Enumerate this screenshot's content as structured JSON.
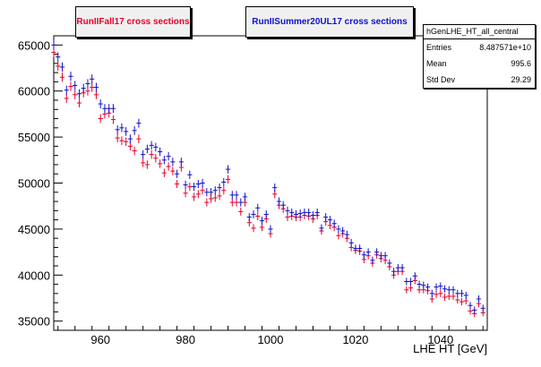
{
  "legend": {
    "fall_label": "RunIIFall17 cross sections",
    "summer_label": "RunIISummer20UL17 cross sections"
  },
  "stats": {
    "name": "hGenLHE_HT_all_central",
    "rows": [
      {
        "label": "Entries",
        "value": "8.487571e+10"
      },
      {
        "label": "Mean",
        "value": "995.6"
      },
      {
        "label": "Std Dev",
        "value": "29.29"
      }
    ]
  },
  "colors": {
    "fall": "#e8002a",
    "summer": "#1010c8"
  },
  "chart_data": {
    "type": "scatter",
    "title": "",
    "xlabel": "LHE HT [GeV]",
    "ylabel": "",
    "xlim": [
      949,
      1051
    ],
    "ylim": [
      34000,
      66000
    ],
    "x_ticks": [
      960,
      980,
      1000,
      1020,
      1040
    ],
    "y_ticks": [
      35000,
      40000,
      45000,
      50000,
      55000,
      60000,
      65000
    ],
    "x": [
      949,
      950,
      951,
      952,
      953,
      954,
      955,
      956,
      957,
      958,
      959,
      960,
      961,
      962,
      963,
      964,
      965,
      966,
      967,
      968,
      969,
      970,
      971,
      972,
      973,
      974,
      975,
      976,
      977,
      978,
      979,
      980,
      981,
      982,
      983,
      984,
      985,
      986,
      987,
      988,
      989,
      990,
      991,
      992,
      993,
      994,
      995,
      996,
      997,
      998,
      999,
      1000,
      1001,
      1002,
      1003,
      1004,
      1005,
      1006,
      1007,
      1008,
      1009,
      1010,
      1011,
      1012,
      1013,
      1014,
      1015,
      1016,
      1017,
      1018,
      1019,
      1020,
      1021,
      1022,
      1023,
      1024,
      1025,
      1026,
      1027,
      1028,
      1029,
      1030,
      1031,
      1032,
      1033,
      1034,
      1035,
      1036,
      1037,
      1038,
      1039,
      1040,
      1041,
      1042,
      1043,
      1044,
      1045,
      1046,
      1047,
      1048,
      1049,
      1050
    ],
    "series": [
      {
        "name": "RunIIFall17 cross sections",
        "values": [
          64200,
          62700,
          61500,
          59200,
          60500,
          59600,
          58700,
          59800,
          60000,
          60400,
          59600,
          57000,
          57500,
          57600,
          56900,
          54900,
          54600,
          54500,
          54000,
          53500,
          54800,
          52200,
          52000,
          53100,
          52700,
          52100,
          51100,
          51800,
          51300,
          49900,
          51700,
          48900,
          49600,
          48500,
          48800,
          49200,
          47900,
          48300,
          48400,
          48600,
          49200,
          50400,
          47900,
          47900,
          46900,
          47900,
          45700,
          45100,
          46400,
          45200,
          46100,
          44500,
          48800,
          47600,
          47200,
          46300,
          46400,
          46300,
          46300,
          46500,
          46400,
          46100,
          46500,
          44800,
          45800,
          45400,
          45200,
          44300,
          44500,
          44000,
          43000,
          42700,
          42600,
          41700,
          42100,
          41300,
          42200,
          41800,
          41600,
          40900,
          40000,
          40400,
          40400,
          38400,
          38600,
          39400,
          38400,
          38400,
          38300,
          37400,
          37900,
          38000,
          37600,
          37700,
          37700,
          37300,
          37100,
          37200,
          36100,
          35800,
          36900,
          35900
        ]
      },
      {
        "name": "RunIISummer20UL17 cross sections",
        "values": [
          65000,
          63700,
          62600,
          60100,
          61600,
          60600,
          59700,
          60300,
          60800,
          61300,
          60400,
          58600,
          58100,
          58100,
          58100,
          55800,
          56000,
          55600,
          54800,
          55700,
          56500,
          53100,
          53700,
          54100,
          53900,
          53400,
          52500,
          52900,
          52300,
          51000,
          52300,
          49800,
          50900,
          49600,
          49900,
          50000,
          49000,
          49000,
          49200,
          49500,
          50100,
          51500,
          48700,
          48700,
          47900,
          48500,
          46300,
          46600,
          47300,
          45900,
          46600,
          45000,
          49500,
          48000,
          47600,
          47000,
          46800,
          46600,
          46700,
          46800,
          46800,
          46500,
          46800,
          45100,
          46300,
          46000,
          45600,
          45000,
          44800,
          44400,
          43500,
          42900,
          42900,
          42200,
          42500,
          41600,
          42500,
          42100,
          42100,
          41300,
          40400,
          40800,
          40800,
          39300,
          39300,
          39900,
          39000,
          38900,
          38700,
          38000,
          38700,
          38800,
          38500,
          38400,
          38400,
          38000,
          38000,
          37800,
          36700,
          36200,
          37400,
          36400
        ]
      }
    ]
  }
}
